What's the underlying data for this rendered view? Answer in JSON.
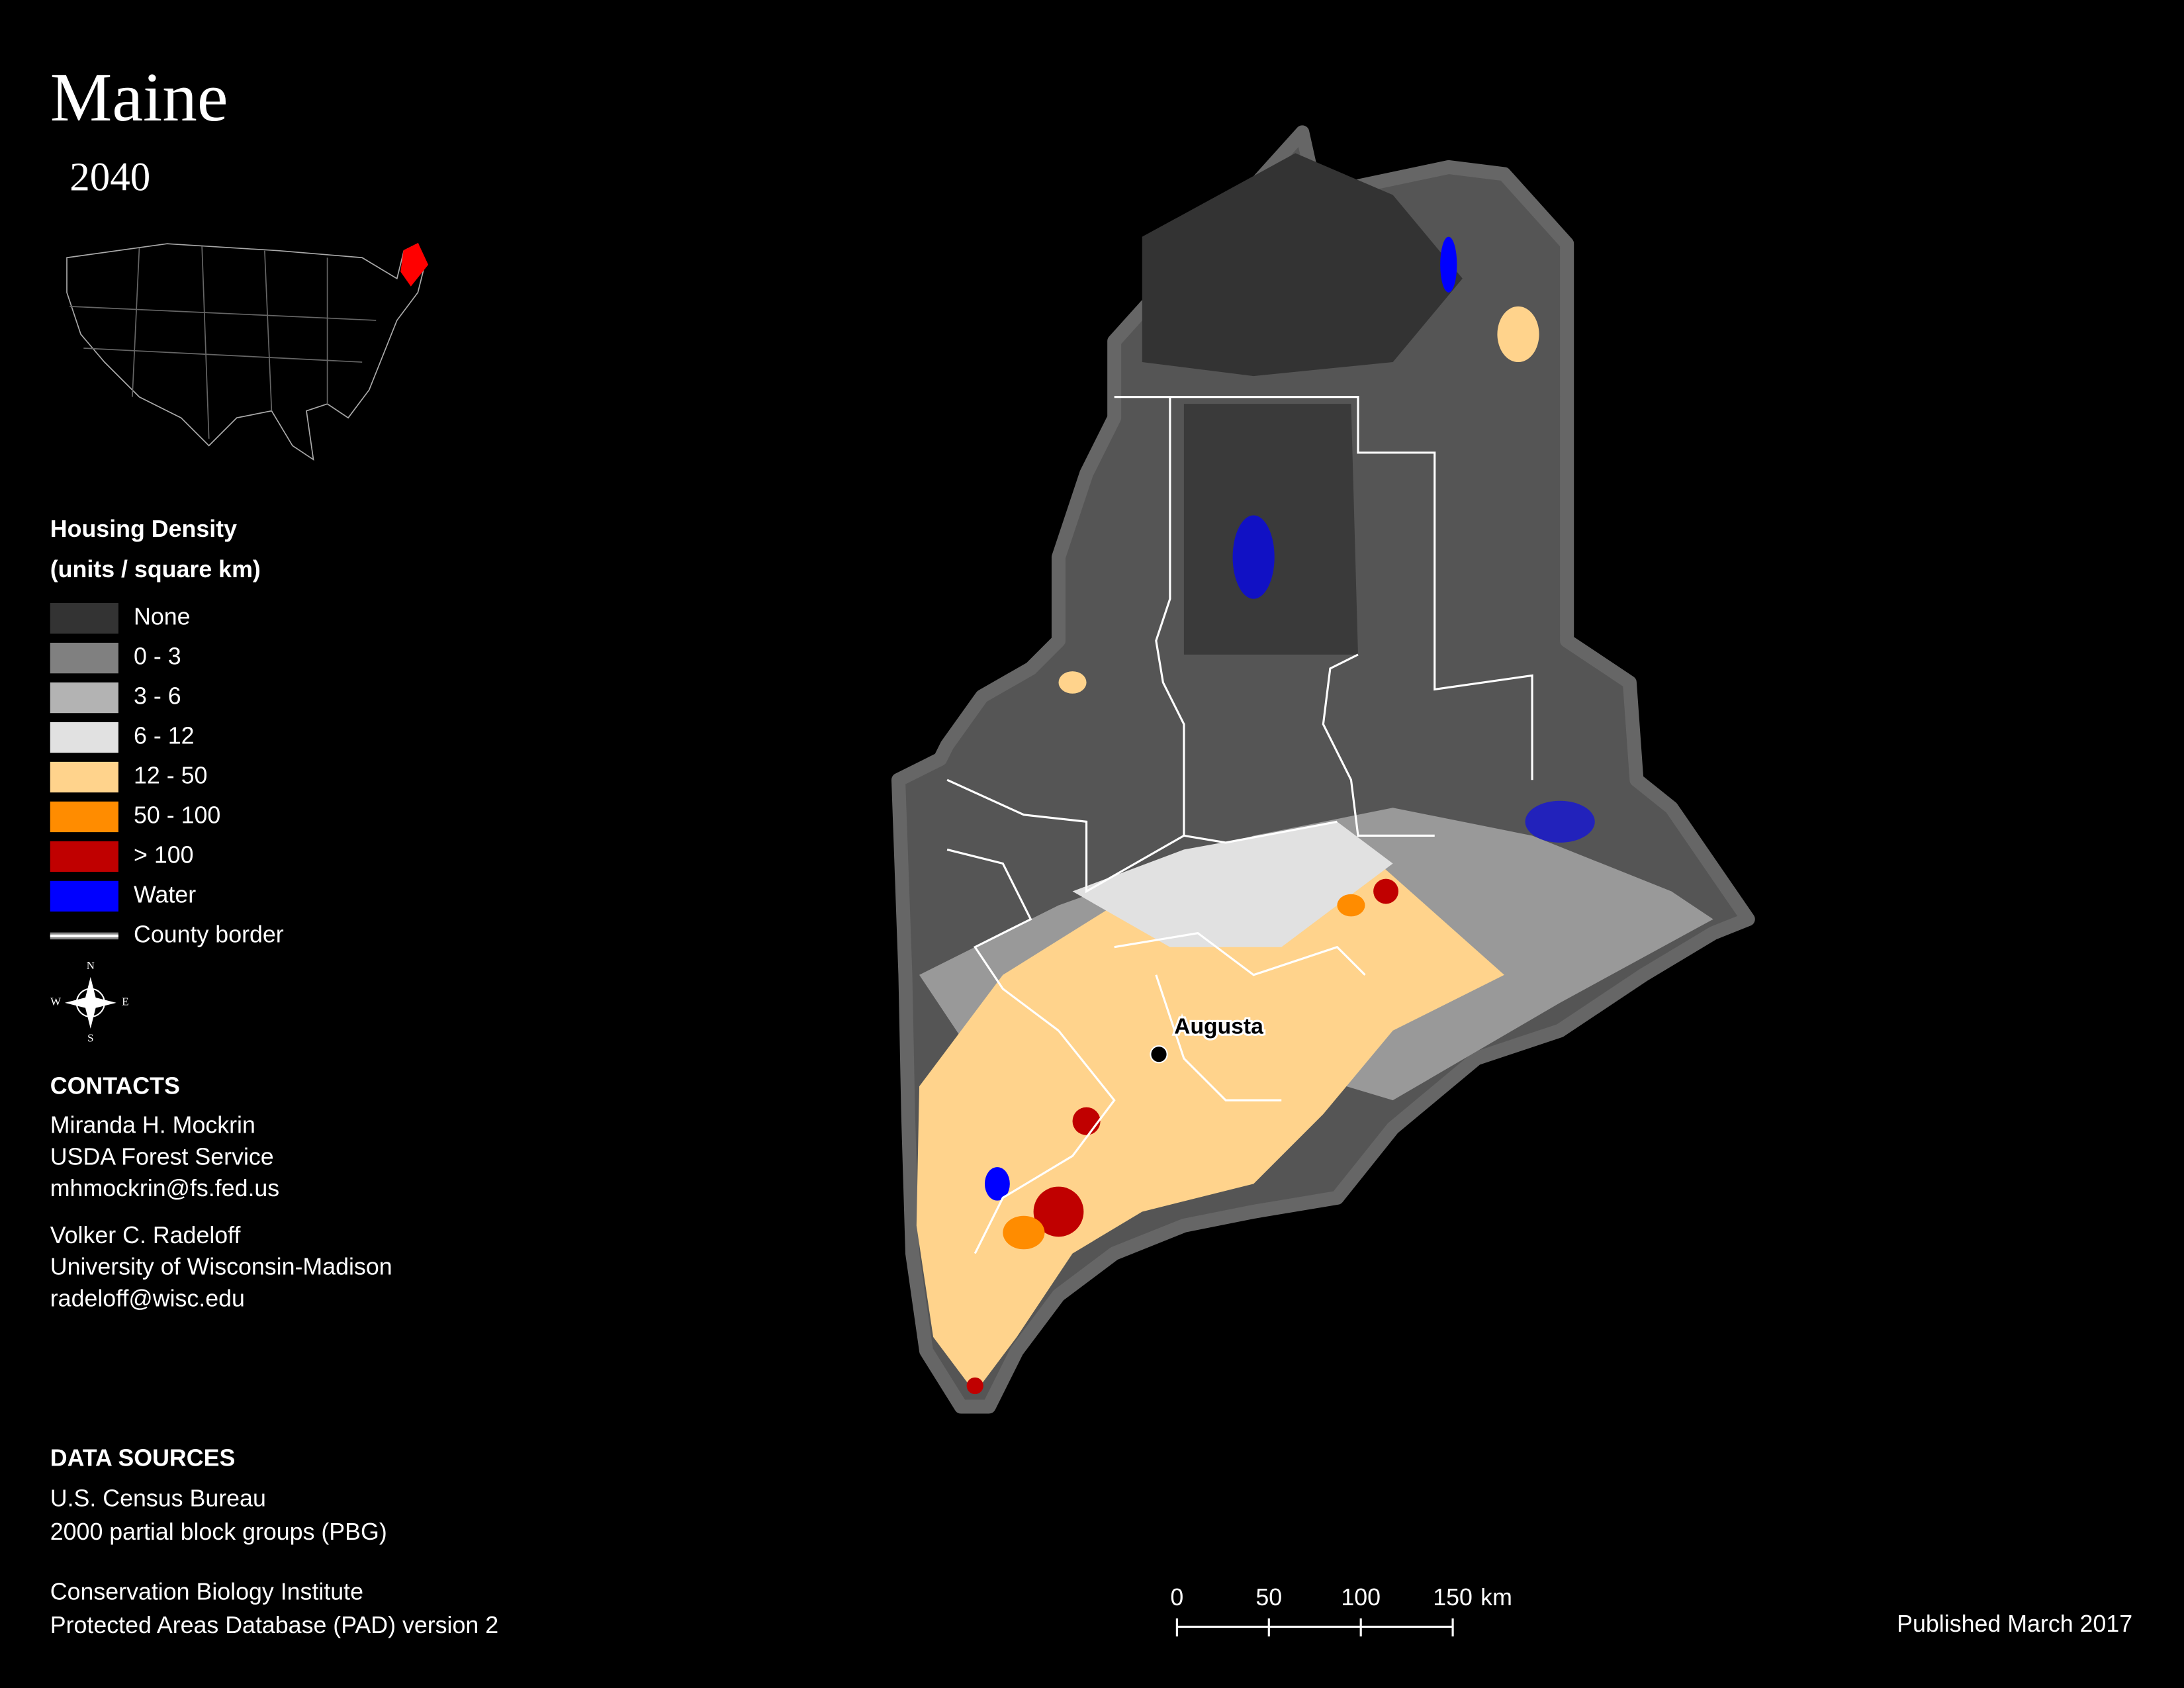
{
  "title": "Maine",
  "subtitle": "2040",
  "legend": {
    "title": "Housing Density",
    "subtitle": "(units / square km)",
    "items": [
      {
        "label": "None",
        "color": "#333333"
      },
      {
        "label": "0 - 3",
        "color": "#808080"
      },
      {
        "label": "3 - 6",
        "color": "#b3b3b3"
      },
      {
        "label": "6 - 12",
        "color": "#e1e1e1"
      },
      {
        "label": "12 - 50",
        "color": "#ffd38c"
      },
      {
        "label": "50 - 100",
        "color": "#ff8c00"
      },
      {
        "label": "> 100",
        "color": "#c00000"
      },
      {
        "label": "Water",
        "color": "#0000ff"
      },
      {
        "label": "County border",
        "color": "#ffffff"
      }
    ]
  },
  "compass": {
    "n": "N",
    "s": "S",
    "e": "E",
    "w": "W"
  },
  "contacts": {
    "title": "CONTACTS",
    "people": [
      [
        "Miranda H. Mockrin",
        "USDA Forest Service",
        "mhmockrin@fs.fed.us"
      ],
      [
        "Volker C. Radeloff",
        "University of Wisconsin-Madison",
        "radeloff@wisc.edu"
      ]
    ]
  },
  "data_sources": {
    "title": "DATA SOURCES",
    "groups": [
      [
        "U.S. Census Bureau",
        "2000 partial block groups (PBG)"
      ],
      [
        "Conservation Biology Institute",
        "Protected Areas Database (PAD) version 2"
      ]
    ]
  },
  "city": "Augusta",
  "scale_bar": {
    "ticks": [
      0,
      50,
      100,
      150
    ],
    "unit": "km"
  },
  "published": "Published March 2017"
}
